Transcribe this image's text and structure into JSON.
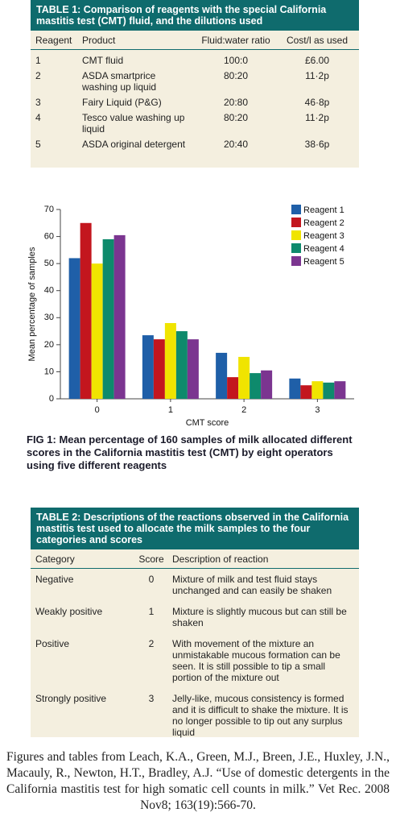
{
  "table1": {
    "title": "TABLE 1: Comparison of reagents with the special California mastitis test (CMT) fluid, and the dilutions used",
    "header": [
      "Reagent",
      "Product",
      "Fluid:water ratio",
      "Cost/l as used"
    ],
    "rows": [
      [
        "1",
        "CMT fluid",
        "100:0",
        "£6.00"
      ],
      [
        "2",
        "ASDA smartprice washing up liquid",
        "80:20",
        "11·2p"
      ],
      [
        "3",
        "Fairy Liquid (P&G)",
        "20:80",
        "46·8p"
      ],
      [
        "4",
        "Tesco value washing up liquid",
        "80:20",
        "11·2p"
      ],
      [
        "5",
        "ASDA original detergent",
        "20:40",
        "38·6p"
      ]
    ]
  },
  "chart_data": {
    "type": "bar",
    "title": "FIG 1: Mean percentage of 160 samples of milk allocated different scores in the California mastitis test (CMT) by eight operators using five different reagents",
    "x_label": "CMT score",
    "y_label": "Mean percentage of samples",
    "categories": [
      "0",
      "1",
      "2",
      "3"
    ],
    "series": [
      {
        "name": "Reagent 1",
        "color": "#1f5fa8",
        "values": [
          52,
          23.5,
          17,
          7.5
        ]
      },
      {
        "name": "Reagent 2",
        "color": "#c3161e",
        "values": [
          65,
          22,
          8,
          5
        ]
      },
      {
        "name": "Reagent 3",
        "color": "#f0e400",
        "values": [
          50,
          28,
          15.5,
          6.5
        ]
      },
      {
        "name": "Reagent 4",
        "color": "#0e8a6c",
        "values": [
          59,
          25,
          9.5,
          6
        ]
      },
      {
        "name": "Reagent 5",
        "color": "#7b3590",
        "values": [
          60.5,
          22,
          10.5,
          6.5
        ]
      }
    ],
    "ylim": [
      0,
      70
    ],
    "yticks": [
      0,
      10,
      20,
      30,
      40,
      50,
      60,
      70
    ],
    "legend": "top-right"
  },
  "table2": {
    "title": "TABLE 2: Descriptions of the reactions observed in the California mastitis test used to allocate the milk samples to the four categories and scores",
    "header": [
      "Category",
      "Score",
      "Description of reaction"
    ],
    "rows": [
      [
        "Negative",
        "0",
        "Mixture of milk and test fluid stays unchanged and can easily be shaken"
      ],
      [
        "Weakly positive",
        "1",
        "Mixture is slightly mucous but can still be shaken"
      ],
      [
        "Positive",
        "2",
        "With movement of the mixture an unmistakable mucous formation can be seen. It is still possible to tip a small portion of the mixture out"
      ],
      [
        "Strongly positive",
        "3",
        "Jelly-like, mucous consistency is formed and it is difficult to shake the mixture. It is no longer possible to tip out any surplus liquid"
      ]
    ]
  },
  "citation": "Figures and tables from  Leach, K.A., Green, M.J., Breen, J.E., Huxley, J.N., Macauly, R., Newton, H.T., Bradley, A.J. “Use of domestic detergents in the California mastitis test for high somatic cell counts in milk.” Vet Rec. 2008 Nov8; 163(19):566-70."
}
